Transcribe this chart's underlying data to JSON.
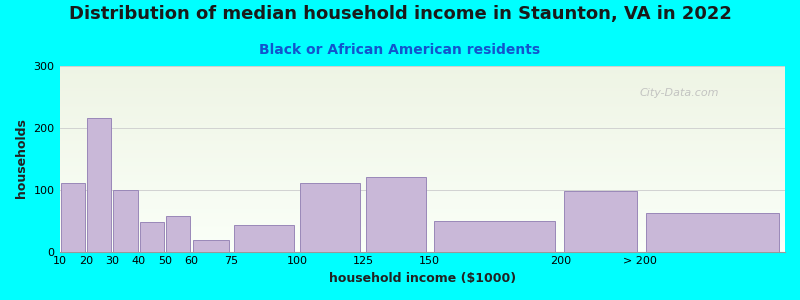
{
  "title": "Distribution of median household income in Staunton, VA in 2022",
  "subtitle": "Black or African American residents",
  "xlabel": "household income ($1000)",
  "ylabel": "households",
  "bg_outer": "#00FFFF",
  "bar_color": "#C9B8D8",
  "bar_edge_color": "#9988B8",
  "watermark": "City-Data.com",
  "plot_bg_top": "#EEF4E4",
  "plot_bg_bottom": "#FAFFF8",
  "title_fontsize": 13,
  "subtitle_fontsize": 10,
  "axis_label_fontsize": 9,
  "bar_left_edges": [
    10,
    20,
    30,
    40,
    50,
    60,
    75,
    100,
    125,
    150,
    200,
    230
  ],
  "bar_widths": [
    10,
    10,
    10,
    10,
    10,
    15,
    25,
    25,
    25,
    50,
    30,
    55
  ],
  "values": [
    110,
    215,
    100,
    48,
    57,
    18,
    43,
    110,
    120,
    50,
    98,
    63
  ],
  "xtick_positions": [
    10,
    20,
    30,
    40,
    50,
    60,
    75,
    100,
    125,
    150,
    200,
    230
  ],
  "xtick_labels": [
    "10",
    "20",
    "30",
    "40",
    "50",
    "60",
    "75",
    "100",
    "125",
    "150",
    "200",
    "> 200"
  ],
  "xlim": [
    10,
    285
  ],
  "ylim": [
    0,
    300
  ],
  "yticks": [
    0,
    100,
    200,
    300
  ]
}
